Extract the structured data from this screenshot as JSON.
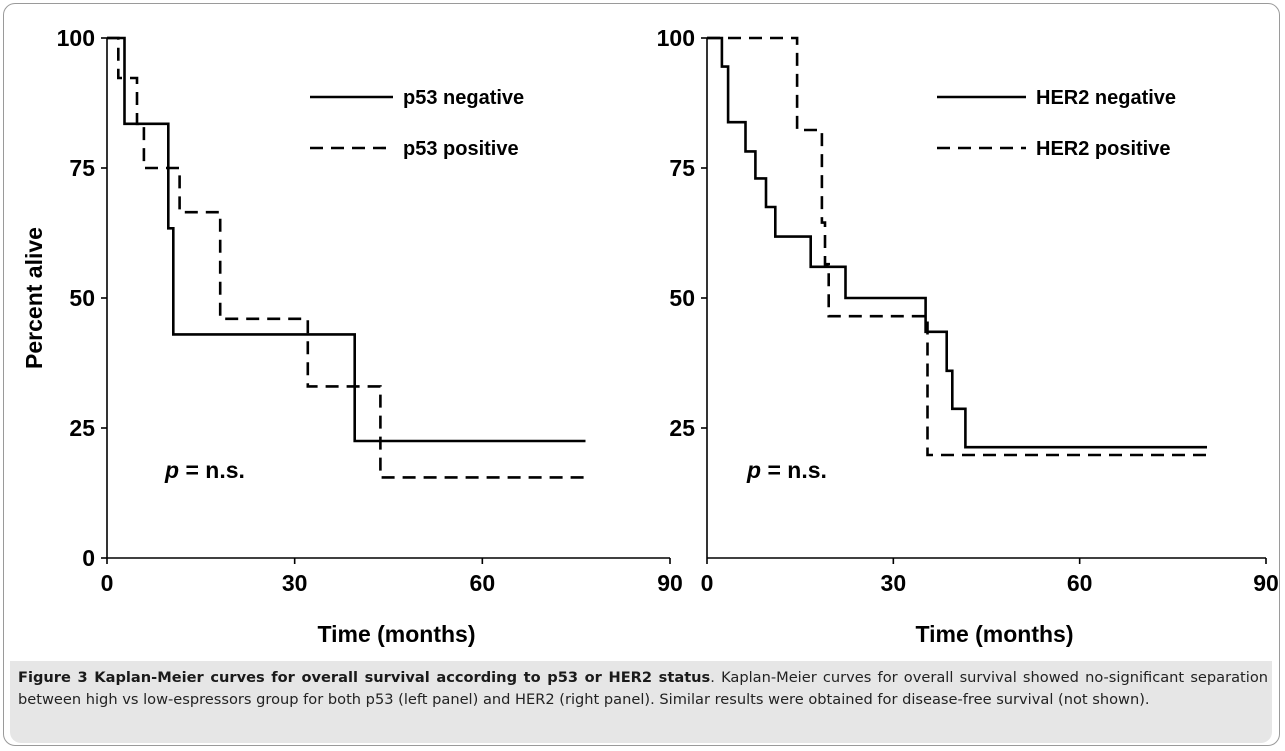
{
  "chart_data": [
    {
      "type": "line",
      "panel": "left",
      "xlabel": "Time (months)",
      "ylabel": "Percent alive",
      "xlim": [
        0,
        90
      ],
      "ylim": [
        0,
        100
      ],
      "x_ticks": [
        "0",
        "30",
        "60",
        "90"
      ],
      "y_ticks": [
        "0",
        "25",
        "50",
        "75",
        "100"
      ],
      "annotation_p": "p",
      "annotation_rest": " = n.s.",
      "legend_placement": "top-right",
      "series": [
        {
          "name": "p53 negative",
          "style": "solid",
          "x": [
            0,
            2.8,
            2.8,
            9.8,
            9.8,
            10.6,
            10.6,
            39.6,
            39.6,
            76.5
          ],
          "y": [
            100,
            100,
            83.5,
            83.5,
            63.4,
            63.4,
            43,
            43,
            22.5,
            22.5
          ]
        },
        {
          "name": "p53 positive",
          "style": "dashed",
          "x": [
            0,
            1.8,
            1.8,
            4.8,
            4.8,
            5.9,
            5.9,
            11.6,
            11.6,
            18.1,
            18.1,
            32.1,
            32.1,
            43.7,
            43.7,
            76.5
          ],
          "y": [
            100,
            100,
            92.3,
            92.3,
            83.5,
            83.5,
            75,
            75,
            66.5,
            66.5,
            46,
            46,
            33,
            33,
            15.5,
            15.5
          ]
        }
      ]
    },
    {
      "type": "line",
      "panel": "right",
      "xlabel": "Time (months)",
      "ylabel": "",
      "xlim": [
        0,
        90
      ],
      "ylim": [
        0,
        100
      ],
      "x_ticks": [
        "0",
        "30",
        "60",
        "90"
      ],
      "y_ticks": [
        "25",
        "50",
        "75",
        "100"
      ],
      "annotation_p": "p",
      "annotation_rest": " = n.s.",
      "legend_placement": "top-right",
      "series": [
        {
          "name": "HER2 negative",
          "style": "solid",
          "x": [
            0,
            2.4,
            2.4,
            3.4,
            3.4,
            6.2,
            6.2,
            7.8,
            7.8,
            9.5,
            9.5,
            11.0,
            11.0,
            16.7,
            16.7,
            22.3,
            22.3,
            35.2,
            35.2,
            38.6,
            38.6,
            39.5,
            39.5,
            41.6,
            41.6,
            80.5
          ],
          "y": [
            100,
            100,
            94.5,
            94.5,
            83.8,
            83.8,
            78.2,
            78.2,
            73,
            73,
            67.5,
            67.5,
            61.8,
            61.8,
            56,
            56,
            50,
            50,
            43.5,
            43.5,
            36,
            36,
            28.7,
            28.7,
            21.3,
            21.3
          ]
        },
        {
          "name": "HER2 positive",
          "style": "dashed",
          "x": [
            0,
            14.5,
            14.5,
            18.5,
            18.5,
            19.0,
            19.0,
            19.6,
            19.6,
            35.5,
            35.5,
            80.5
          ],
          "y": [
            100,
            100,
            82.3,
            82.3,
            64.5,
            64.5,
            56.5,
            56.5,
            46.5,
            46.5,
            19.8,
            19.8
          ]
        }
      ]
    }
  ],
  "caption": {
    "bold": "Figure 3 Kaplan-Meier curves for overall survival according to p53 or HER2 status",
    "text": ". Kaplan-Meier curves for overall survival showed no-significant separation between high vs low-espressors group for both p53 (left panel) and HER2 (right panel). Similar results were obtained for disease-free survival (not shown)."
  }
}
